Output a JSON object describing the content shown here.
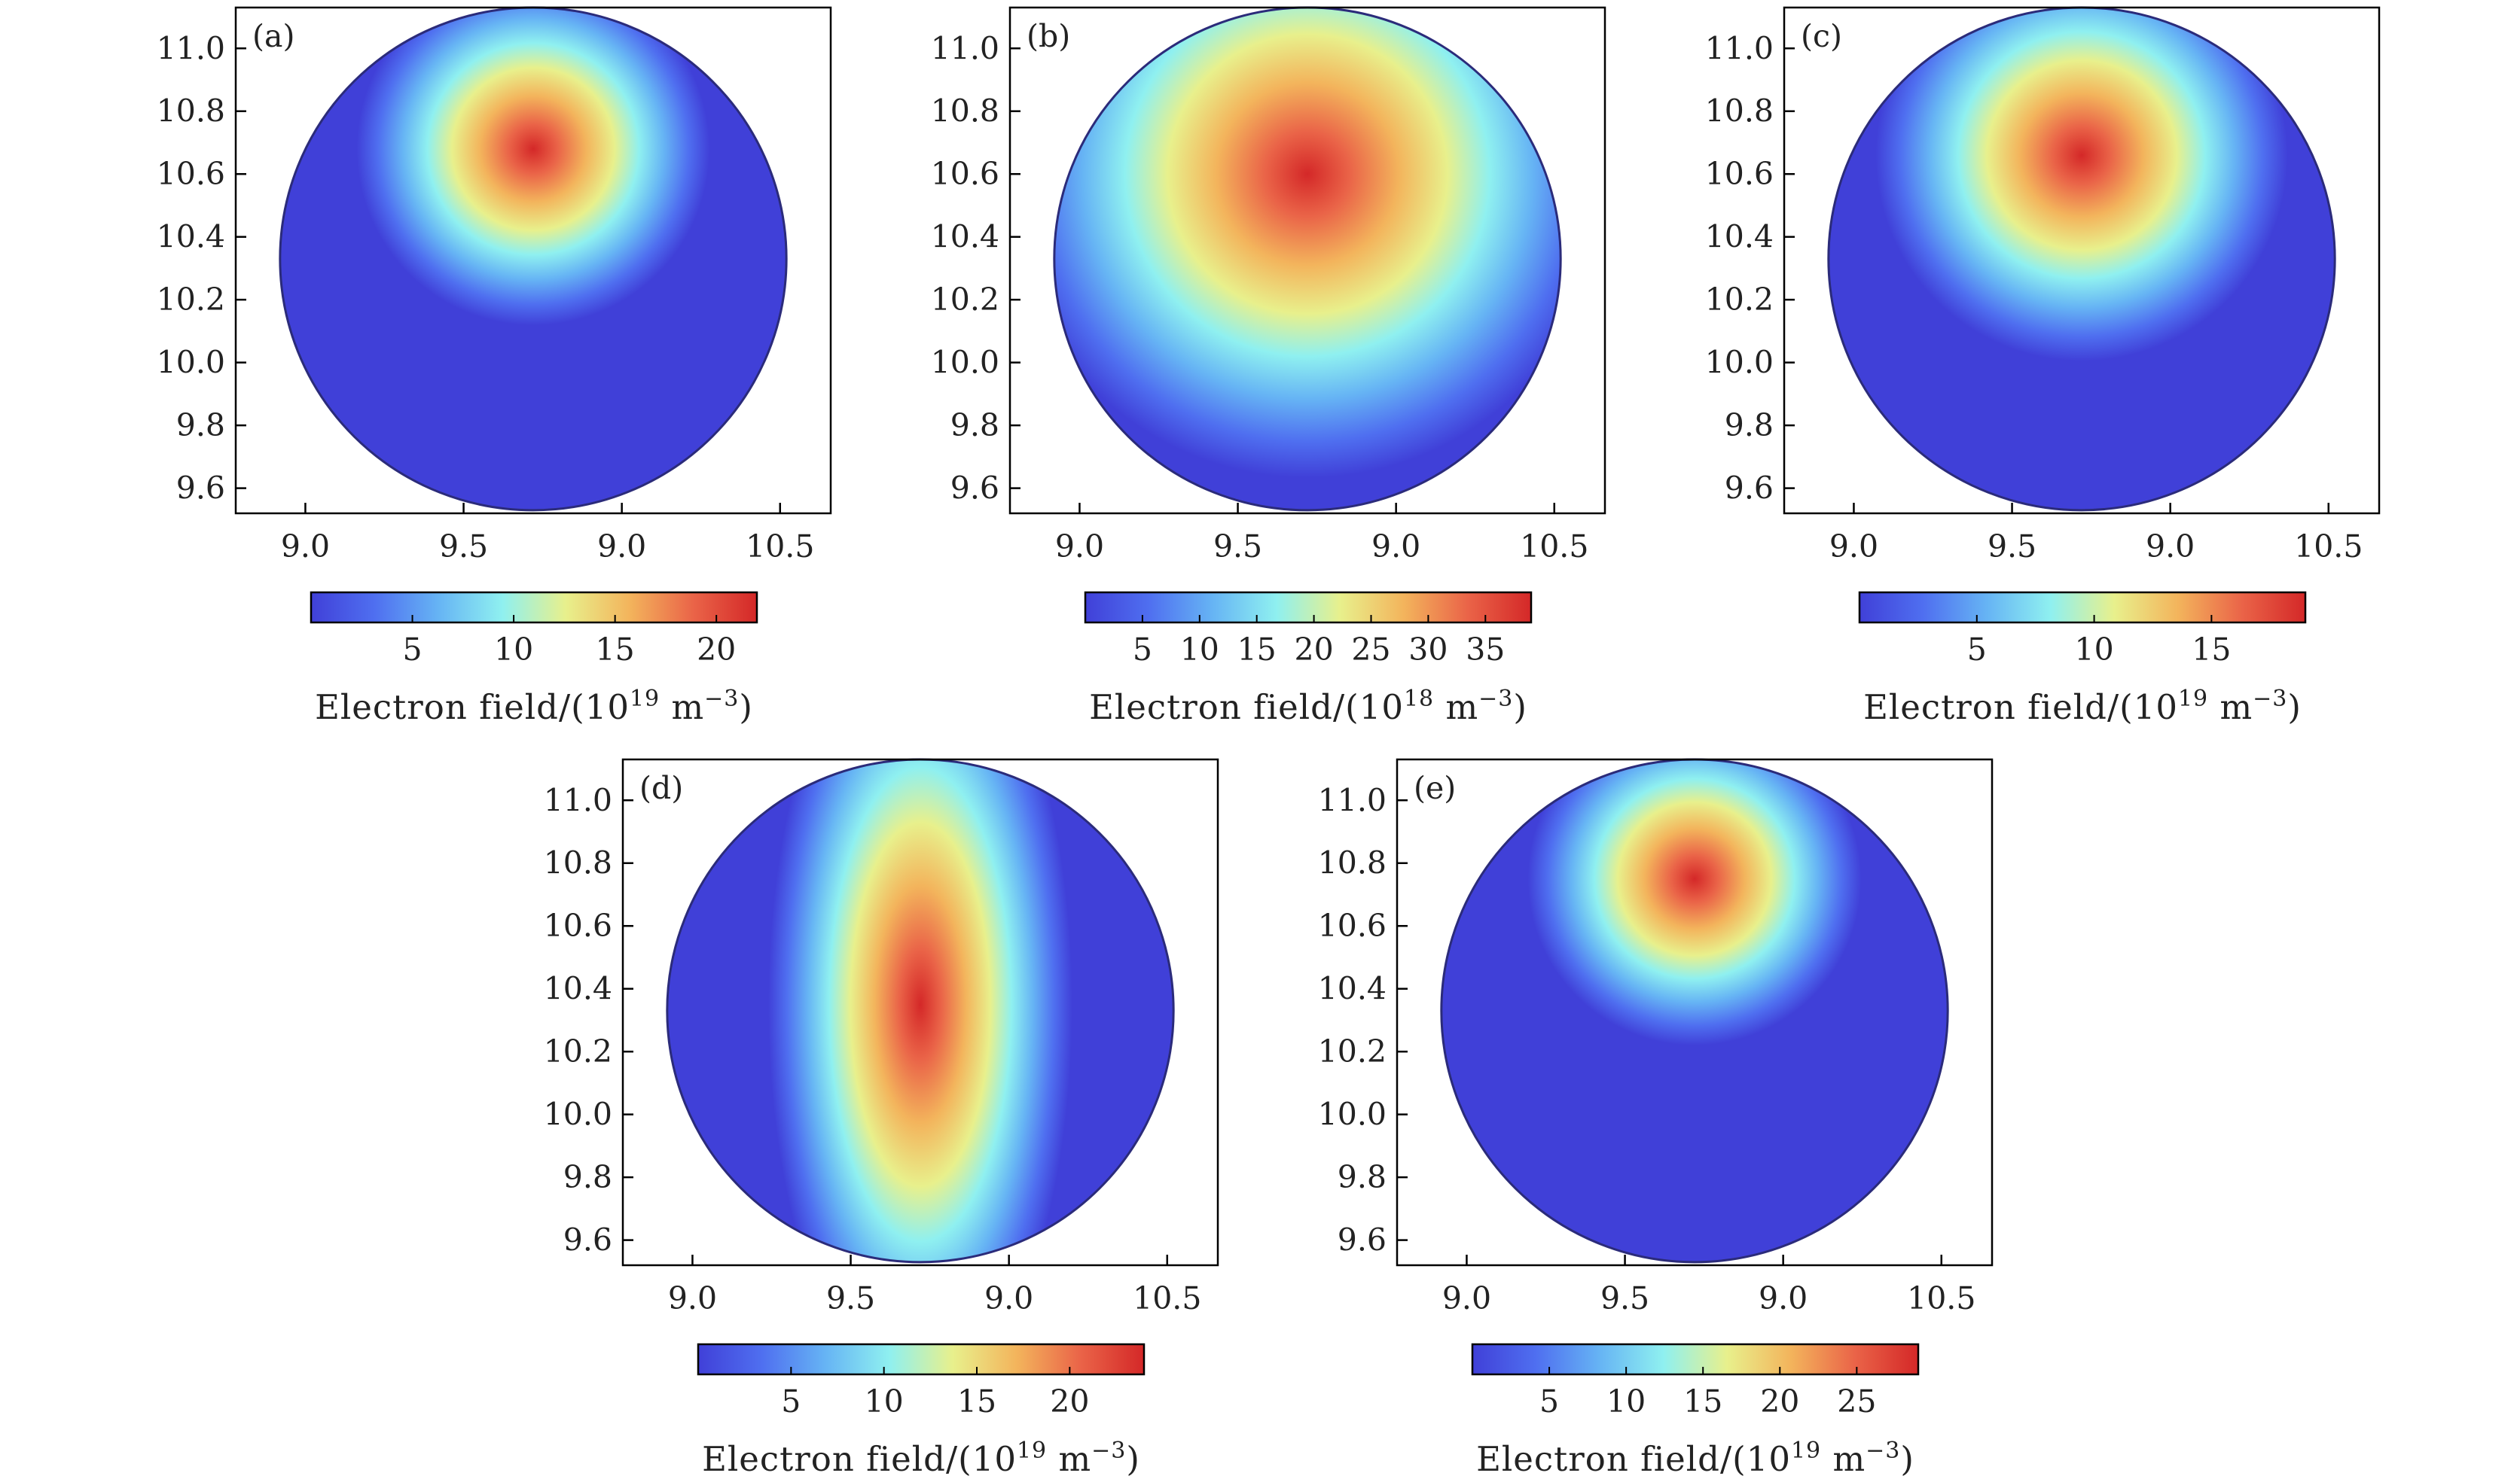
{
  "chart_data": [
    {
      "type": "heatmap",
      "panel_label": "(a)",
      "x_ticks": [
        "9.0",
        "9.5",
        "9.0",
        "10.5"
      ],
      "y_ticks": [
        "9.6",
        "9.8",
        "10.0",
        "10.2",
        "10.4",
        "10.6",
        "10.8",
        "11.0"
      ],
      "colorbar": {
        "min": 0,
        "max": 22,
        "ticks": [
          5,
          10,
          15,
          20
        ],
        "label_prefix": "Electron field/(10",
        "label_exp": "19",
        "label_unit": " m",
        "label_unit_exp": "−3",
        "label_suffix": ")"
      },
      "hotspots": [
        {
          "x": 9.72,
          "y": 10.68,
          "value": 22,
          "spread": 0.36
        }
      ]
    },
    {
      "type": "heatmap",
      "panel_label": "(b)",
      "x_ticks": [
        "9.0",
        "9.5",
        "9.0",
        "10.5"
      ],
      "y_ticks": [
        "9.6",
        "9.8",
        "10.0",
        "10.2",
        "10.4",
        "10.6",
        "10.8",
        "11.0"
      ],
      "colorbar": {
        "min": 0,
        "max": 39,
        "ticks": [
          5,
          10,
          15,
          20,
          25,
          30,
          35
        ],
        "label_prefix": "Electron field/(10",
        "label_exp": "18",
        "label_unit": " m",
        "label_unit_exp": "−3",
        "label_suffix": ")"
      },
      "hotspots": [
        {
          "x": 9.72,
          "y": 10.6,
          "value": 39,
          "spread": 0.62
        }
      ]
    },
    {
      "type": "heatmap",
      "panel_label": "(c)",
      "x_ticks": [
        "9.0",
        "9.5",
        "9.0",
        "10.5"
      ],
      "y_ticks": [
        "9.6",
        "9.8",
        "10.0",
        "10.2",
        "10.4",
        "10.6",
        "10.8",
        "11.0"
      ],
      "colorbar": {
        "min": 0,
        "max": 19,
        "ticks": [
          5,
          10,
          15
        ],
        "label_prefix": "Electron field/(10",
        "label_exp": "19",
        "label_unit": " m",
        "label_unit_exp": "−3",
        "label_suffix": ")"
      },
      "hotspots": [
        {
          "x": 9.72,
          "y": 10.66,
          "value": 19,
          "spread": 0.42
        }
      ]
    },
    {
      "type": "heatmap",
      "panel_label": "(d)",
      "x_ticks": [
        "9.0",
        "9.5",
        "9.0",
        "10.5"
      ],
      "y_ticks": [
        "9.6",
        "9.8",
        "10.0",
        "10.2",
        "10.4",
        "10.6",
        "10.8",
        "11.0"
      ],
      "colorbar": {
        "min": 0,
        "max": 24,
        "ticks": [
          5,
          10,
          15,
          20
        ],
        "label_prefix": "Electron field/(10",
        "label_exp": "19",
        "label_unit": " m",
        "label_unit_exp": "−3",
        "label_suffix": ")"
      },
      "hotspots": [
        {
          "x": 9.72,
          "y": 10.35,
          "value": 24,
          "spread": 0.5,
          "elongation": 2.6
        }
      ]
    },
    {
      "type": "heatmap",
      "panel_label": "(e)",
      "x_ticks": [
        "9.0",
        "9.5",
        "9.0",
        "10.5"
      ],
      "y_ticks": [
        "9.6",
        "9.8",
        "10.0",
        "10.2",
        "10.4",
        "10.6",
        "10.8",
        "11.0"
      ],
      "colorbar": {
        "min": 0,
        "max": 29,
        "ticks": [
          5,
          10,
          15,
          20,
          25
        ],
        "label_prefix": "Electron field/(10",
        "label_exp": "19",
        "label_unit": " m",
        "label_unit_exp": "−3",
        "label_suffix": ")"
      },
      "hotspots": [
        {
          "x": 9.72,
          "y": 10.75,
          "value": 29,
          "spread": 0.34
        }
      ]
    }
  ],
  "colors": {
    "colormap": [
      "#4040d8",
      "#4f6ff0",
      "#66b4f4",
      "#8ff0f0",
      "#e8f08c",
      "#f3b45c",
      "#ea6448",
      "#d42828"
    ],
    "axis": "#000000"
  }
}
